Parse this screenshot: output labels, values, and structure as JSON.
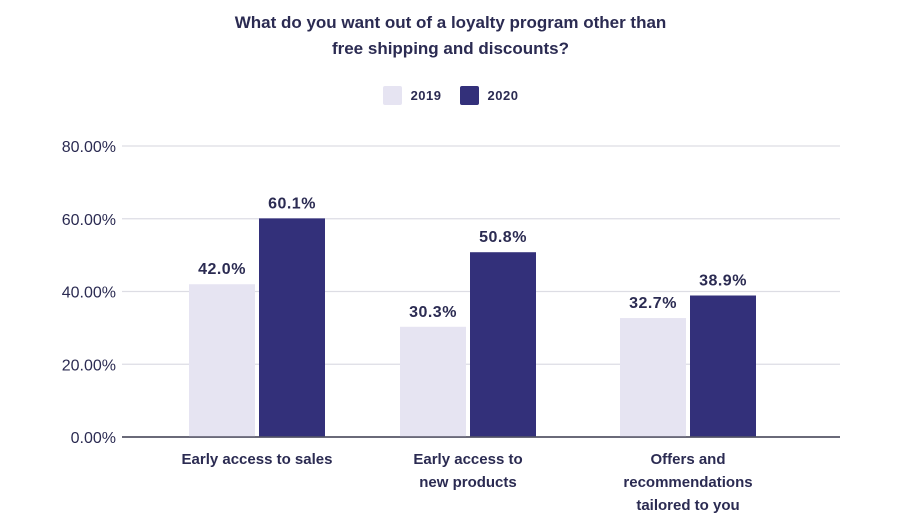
{
  "chart_data": {
    "type": "bar",
    "title": "What do you want out of a loyalty program other than free shipping and discounts?",
    "title_lines": [
      "What do you want out of a loyalty program other than",
      "free shipping and discounts?"
    ],
    "categories": [
      "Early access to sales",
      "Early access to new products",
      "Offers and recommendations tailored to you"
    ],
    "category_lines": [
      [
        "Early access to sales"
      ],
      [
        "Early access to",
        "new products"
      ],
      [
        "Offers and",
        "recommendations",
        "tailored to you"
      ]
    ],
    "series": [
      {
        "name": "2019",
        "color": "#e6e4f2",
        "values": [
          42.0,
          30.3,
          32.7
        ],
        "labels": [
          "42.0%",
          "30.3%",
          "32.7%"
        ]
      },
      {
        "name": "2020",
        "color": "#33307a",
        "values": [
          60.1,
          50.8,
          38.9
        ],
        "labels": [
          "60.1%",
          "50.8%",
          "38.9%"
        ]
      }
    ],
    "xlabel": "",
    "ylabel": "",
    "ylim": [
      0,
      80
    ],
    "yticks": [
      0,
      20,
      40,
      60,
      80
    ],
    "ytick_labels": [
      "0.00%",
      "20.00%",
      "40.00%",
      "60.00%",
      "80.00%"
    ],
    "grid": true,
    "legend_position": "top-center"
  }
}
